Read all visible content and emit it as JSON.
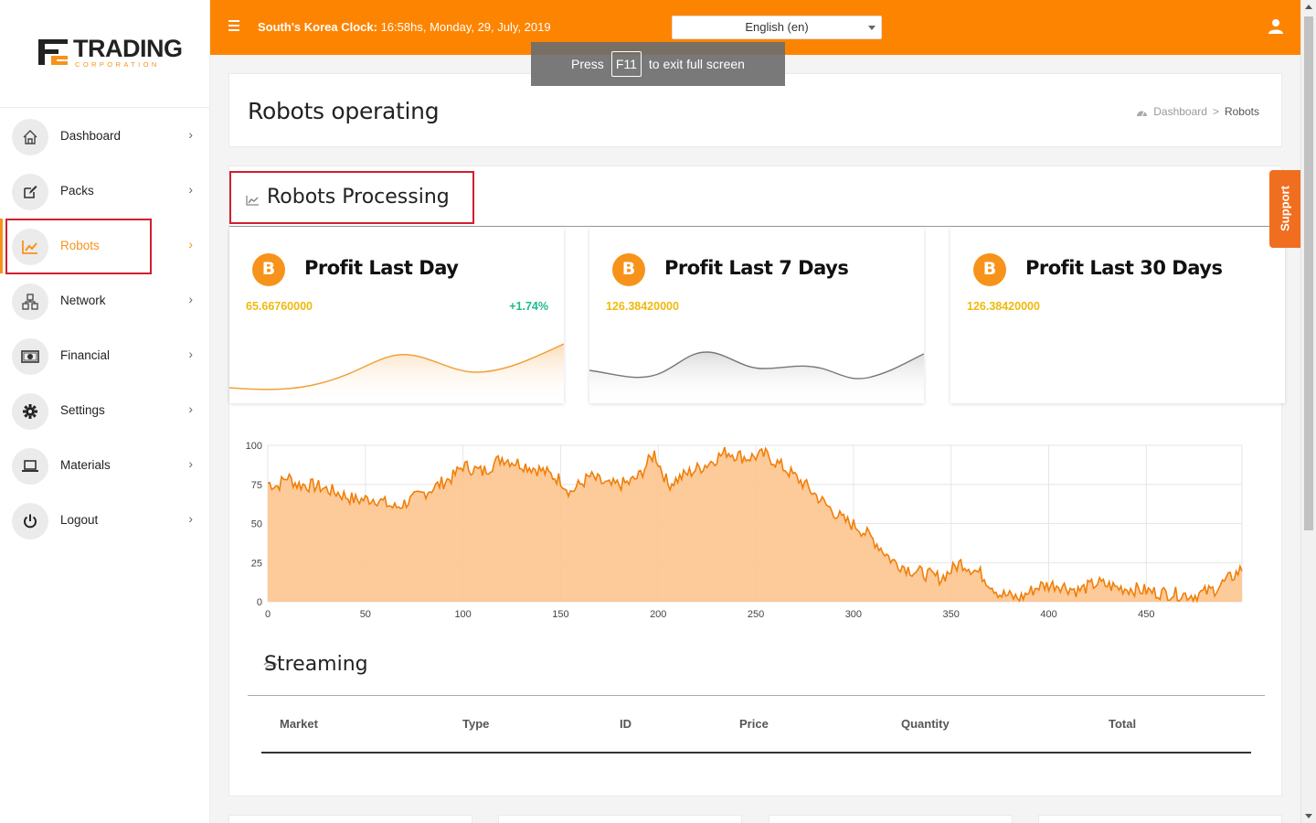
{
  "brand": {
    "name": "TRADING",
    "subtitle": "CORPORATION"
  },
  "topbar": {
    "clock_label": "South's Korea Clock:",
    "clock_value": "16:58hs, Monday, 29, July, 2019",
    "language": "English (en)"
  },
  "toast": {
    "press": "Press",
    "key": "F11",
    "rest": "to exit full screen"
  },
  "sidebar": {
    "items": [
      {
        "label": "Dashboard",
        "icon": "home-icon"
      },
      {
        "label": "Packs",
        "icon": "edit-icon"
      },
      {
        "label": "Robots",
        "icon": "chart-line-icon",
        "active": true
      },
      {
        "label": "Network",
        "icon": "network-icon"
      },
      {
        "label": "Financial",
        "icon": "money-icon"
      },
      {
        "label": "Settings",
        "icon": "gear-icon"
      },
      {
        "label": "Materials",
        "icon": "laptop-icon"
      },
      {
        "label": "Logout",
        "icon": "power-icon"
      }
    ]
  },
  "page": {
    "title": "Robots operating",
    "breadcrumb": {
      "home": "Dashboard",
      "separator": ">",
      "current": "Robots"
    }
  },
  "section": {
    "title": "Robots Processing"
  },
  "cards": [
    {
      "title": "Profit Last Day",
      "value": "65.66760000",
      "change": "+1.74%",
      "icon": "B"
    },
    {
      "title": "Profit Last 7 Days",
      "value": "126.38420000",
      "icon": "B"
    },
    {
      "title": "Profit Last 30 Days",
      "value": "126.38420000",
      "icon": "B"
    }
  ],
  "support_label": "Support",
  "chart_data": {
    "type": "area",
    "x_ticks": [
      0,
      50,
      100,
      150,
      200,
      250,
      300,
      350,
      400,
      450
    ],
    "y_ticks": [
      0,
      25,
      50,
      75,
      100
    ],
    "xlim": [
      0,
      499
    ],
    "ylim": [
      0,
      100
    ],
    "grid": true,
    "color": "#fdc48e",
    "stroke": "#f07f0a",
    "anchors": [
      [
        0,
        76
      ],
      [
        5,
        74
      ],
      [
        10,
        80
      ],
      [
        15,
        75
      ],
      [
        25,
        74
      ],
      [
        35,
        70
      ],
      [
        45,
        65
      ],
      [
        55,
        66
      ],
      [
        65,
        60
      ],
      [
        75,
        66
      ],
      [
        85,
        73
      ],
      [
        95,
        80
      ],
      [
        100,
        87
      ],
      [
        110,
        83
      ],
      [
        120,
        92
      ],
      [
        130,
        88
      ],
      [
        140,
        84
      ],
      [
        150,
        78
      ],
      [
        155,
        70
      ],
      [
        165,
        80
      ],
      [
        175,
        74
      ],
      [
        185,
        76
      ],
      [
        190,
        80
      ],
      [
        198,
        95
      ],
      [
        205,
        75
      ],
      [
        215,
        82
      ],
      [
        225,
        88
      ],
      [
        235,
        96
      ],
      [
        245,
        92
      ],
      [
        255,
        94
      ],
      [
        265,
        85
      ],
      [
        275,
        75
      ],
      [
        285,
        63
      ],
      [
        295,
        52
      ],
      [
        302,
        48
      ],
      [
        310,
        40
      ],
      [
        320,
        26
      ],
      [
        330,
        20
      ],
      [
        345,
        15
      ],
      [
        355,
        25
      ],
      [
        365,
        18
      ],
      [
        375,
        5
      ],
      [
        385,
        2
      ],
      [
        395,
        10
      ],
      [
        405,
        11
      ],
      [
        415,
        7
      ],
      [
        425,
        12
      ],
      [
        435,
        9
      ],
      [
        445,
        8
      ],
      [
        455,
        6
      ],
      [
        465,
        5
      ],
      [
        475,
        4
      ],
      [
        485,
        8
      ],
      [
        495,
        17
      ],
      [
        499,
        21
      ]
    ]
  },
  "streaming": {
    "title": "Streaming",
    "columns": [
      "Market",
      "Type",
      "ID",
      "Price",
      "Quantity",
      "Total"
    ]
  }
}
